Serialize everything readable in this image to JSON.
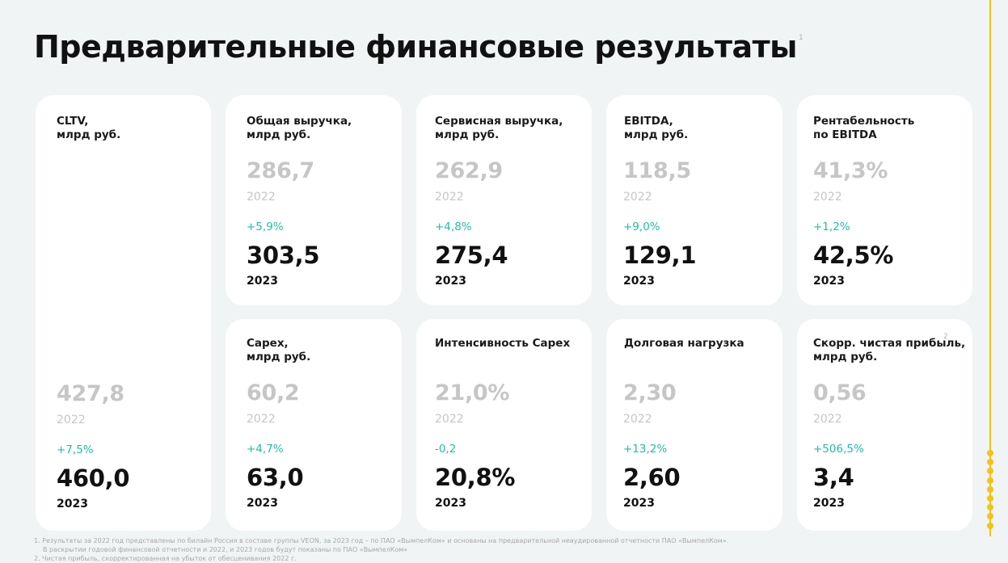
{
  "title": "Предварительные финансовые результаты",
  "title_footnote": "1",
  "cards": [
    {
      "label": "CLTV,\nмлрд руб.",
      "prev_value": "427,8",
      "prev_year": "2022",
      "delta": "+7,5%",
      "cur_value": "460,0",
      "cur_year": "2023"
    },
    {
      "label": "Общая выручка,\nмлрд руб.",
      "prev_value": "286,7",
      "prev_year": "2022",
      "delta": "+5,9%",
      "cur_value": "303,5",
      "cur_year": "2023"
    },
    {
      "label": "Сервисная выручка,\nмлрд руб.",
      "prev_value": "262,9",
      "prev_year": "2022",
      "delta": "+4,8%",
      "cur_value": "275,4",
      "cur_year": "2023"
    },
    {
      "label": "EBITDA,\nмлрд руб.",
      "prev_value": "118,5",
      "prev_year": "2022",
      "delta": "+9,0%",
      "cur_value": "129,1",
      "cur_year": "2023"
    },
    {
      "label": "Рентабельность\nпо EBITDA",
      "prev_value": "41,3%",
      "prev_year": "2022",
      "delta": "+1,2%",
      "cur_value": "42,5%",
      "cur_year": "2023"
    },
    {
      "label": "Capex,\nмлрд руб.",
      "prev_value": "60,2",
      "prev_year": "2022",
      "delta": "+4,7%",
      "cur_value": "63,0",
      "cur_year": "2023"
    },
    {
      "label": "Интенсивность Capex",
      "prev_value": "21,0%",
      "prev_year": "2022",
      "delta": "-0,2",
      "cur_value": "20,8%",
      "cur_year": "2023"
    },
    {
      "label": "Долговая нагрузка",
      "prev_value": "2,30",
      "prev_year": "2022",
      "delta": "+13,2%",
      "cur_value": "2,60",
      "cur_year": "2023"
    },
    {
      "label": "Скорр. чистая прибыль,\nмлрд руб.",
      "label_footnote": "2",
      "prev_value": "0,56",
      "prev_year": "2022",
      "delta": "+506,5%",
      "cur_value": "3,4",
      "cur_year": "2023"
    }
  ],
  "footnotes": {
    "line1": "1. Результаты за 2022 год представлены по билайн Россия в составе группы VEON, за 2023 год – по ПАО «ВымпелКом» и основаны на предварительной неаудированной отчетности ПАО «ВымпелКом».",
    "line2": "В раскрытии годовой финансовой отчетности и 2022, и 2023 годов будут показаны по ПАО «ВымпелКом»",
    "line3": "2. Чистая прибыль, скорректированная на убыток от обесценивания 2022 г."
  },
  "accent_color": "#f3c316",
  "positive_color": "#1fbea3"
}
